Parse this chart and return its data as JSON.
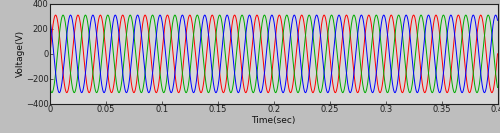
{
  "title": "",
  "xlabel": "Time(sec)",
  "ylabel": "Voltage(V)",
  "xlim": [
    0,
    0.4
  ],
  "ylim": [
    -400,
    400
  ],
  "amplitude": 311,
  "frequency": 50,
  "phase_shifts": [
    0,
    -2.0944,
    2.0944
  ],
  "line_colors": [
    "#ff0000",
    "#00aa00",
    "#0000ff"
  ],
  "line_width": 0.7,
  "xticks": [
    0,
    0.05,
    0.1,
    0.15,
    0.2,
    0.25,
    0.3,
    0.35,
    0.4
  ],
  "yticks": [
    -400,
    -200,
    0,
    200,
    400
  ],
  "bg_color": "#bebebe",
  "plot_bg_color": "#d8d8d8",
  "spine_color": "#222222",
  "tick_color": "#222222",
  "label_color": "#111111",
  "figsize": [
    5.0,
    1.33
  ],
  "dpi": 100
}
